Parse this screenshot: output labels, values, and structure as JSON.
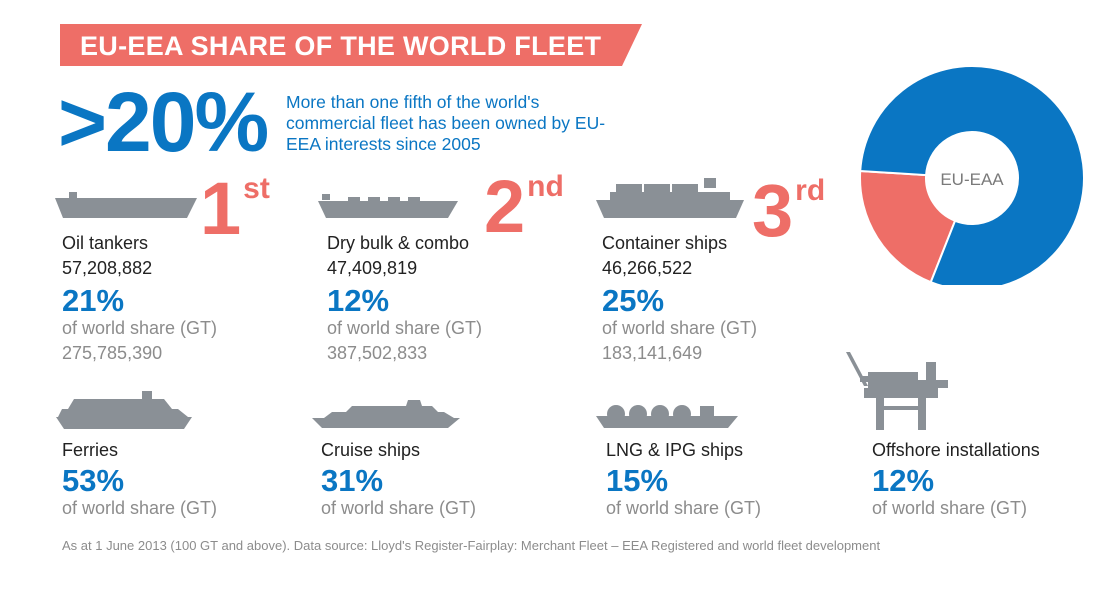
{
  "title": "EU-EEA SHARE OF THE WORLD FLEET",
  "headline": {
    "value": ">20%",
    "description": "More than one fifth of the world's commercial fleet has been owned by EU-EEA interests since 2005"
  },
  "colors": {
    "blue": "#0a76c3",
    "coral": "#ee6e67",
    "gray": "#8a9096"
  },
  "icons": [
    "oil-tanker-icon",
    "dry-bulk-ship-icon",
    "container-ship-icon",
    "ferry-icon",
    "cruise-ship-icon",
    "lng-ship-icon",
    "offshore-platform-icon"
  ],
  "categories": [
    {
      "name": "Oil tankers",
      "eu_gt": "57,208,882",
      "share": "21%",
      "share_label": "of world share (GT)",
      "world_gt": "275,785,390",
      "rank": "1",
      "rank_suffix": "st"
    },
    {
      "name": "Dry bulk & combo",
      "eu_gt": "47,409,819",
      "share": "12%",
      "share_label": "of world share (GT)",
      "world_gt": "387,502,833",
      "rank": "2",
      "rank_suffix": "nd"
    },
    {
      "name": "Container ships",
      "eu_gt": "46,266,522",
      "share": "25%",
      "share_label": "of world share (GT)",
      "world_gt": "183,141,649",
      "rank": "3",
      "rank_suffix": "rd"
    },
    {
      "name": "Ferries",
      "share": "53%",
      "share_label": "of world share (GT)"
    },
    {
      "name": "Cruise ships",
      "share": "31%",
      "share_label": "of world share (GT)"
    },
    {
      "name": "LNG & IPG ships",
      "share": "15%",
      "share_label": "of world share (GT)"
    },
    {
      "name": "Offshore installations",
      "share": "12%",
      "share_label": "of world share (GT)"
    }
  ],
  "donut": {
    "label": "EU-EAA"
  },
  "chart_data": {
    "type": "pie",
    "title": "EU-EEA SHARE OF THE WORLD FLEET",
    "slices": [
      {
        "value": 20,
        "color": "#ee6e67"
      },
      {
        "value": 80,
        "color": "#0a76c3"
      }
    ],
    "center_label": "EU-EAA"
  },
  "footnote": "As at 1 June 2013 (100 GT and above). Data source: Lloyd's Register-Fairplay: Merchant Fleet – EEA Registered and world fleet development"
}
